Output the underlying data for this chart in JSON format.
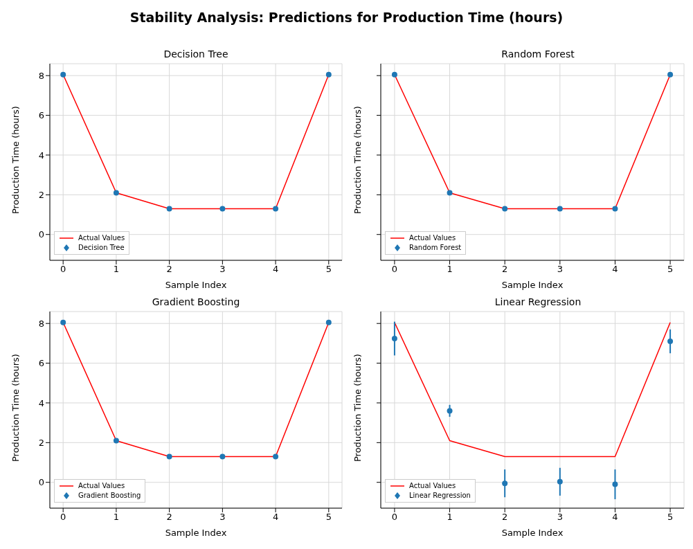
{
  "chart_data": [
    {
      "type": "scatter",
      "title": "Decision Tree",
      "annotations": [
        "Stability Analysis: Predictions for Production Time (hours)"
      ],
      "xlabel": "Sample Index",
      "ylabel": "Production Time (hours)",
      "x": [
        0,
        1,
        2,
        3,
        4,
        5
      ],
      "xlim": [
        -0.25,
        5.25
      ],
      "xticks": [
        0,
        1,
        2,
        3,
        4,
        5
      ],
      "ylim": [
        -1.3,
        8.6
      ],
      "yticks": [
        0,
        2,
        4,
        6,
        8
      ],
      "grid": true,
      "legend": "bottom left",
      "series": [
        {
          "name": "Actual Values",
          "type": "line",
          "color": "#ff0000",
          "marker": "none",
          "values": [
            8.05,
            2.1,
            1.3,
            1.3,
            1.3,
            8.05
          ]
        },
        {
          "name": "Decision Tree",
          "type": "scatter",
          "color": "#1f77b4",
          "marker": "circle",
          "values": [
            8.05,
            2.1,
            1.3,
            1.3,
            1.3,
            8.05
          ]
        }
      ]
    },
    {
      "type": "scatter",
      "title": "Random Forest",
      "xlabel": "Sample Index",
      "ylabel": "Production Time (hours)",
      "x": [
        0,
        1,
        2,
        3,
        4,
        5
      ],
      "xlim": [
        -0.25,
        5.25
      ],
      "xticks": [
        0,
        1,
        2,
        3,
        4,
        5
      ],
      "ylim": [
        -1.3,
        8.6
      ],
      "yticks": [
        0,
        2,
        4,
        6,
        8
      ],
      "tick_labels": "x",
      "grid": true,
      "legend": "bottom left",
      "series": [
        {
          "name": "Actual Values",
          "type": "line",
          "color": "#ff0000",
          "marker": "none",
          "values": [
            8.05,
            2.1,
            1.3,
            1.3,
            1.3,
            8.05
          ]
        },
        {
          "name": "Random Forest",
          "type": "scatter",
          "color": "#1f77b4",
          "marker": "circle",
          "values": [
            8.05,
            2.1,
            1.3,
            1.3,
            1.3,
            8.05
          ]
        }
      ]
    },
    {
      "type": "scatter",
      "title": "Gradient Boosting",
      "xlabel": "Sample Index",
      "ylabel": "Production Time (hours)",
      "x": [
        0,
        1,
        2,
        3,
        4,
        5
      ],
      "xlim": [
        -0.25,
        5.25
      ],
      "xticks": [
        0,
        1,
        2,
        3,
        4,
        5
      ],
      "ylim": [
        -1.3,
        8.6
      ],
      "yticks": [
        0,
        2,
        4,
        6,
        8
      ],
      "grid": true,
      "legend": "bottom left",
      "series": [
        {
          "name": "Actual Values",
          "type": "line",
          "color": "#ff0000",
          "marker": "none",
          "values": [
            8.05,
            2.1,
            1.3,
            1.3,
            1.3,
            8.05
          ]
        },
        {
          "name": "Gradient Boosting",
          "type": "scatter",
          "color": "#1f77b4",
          "marker": "circle",
          "values": [
            8.05,
            2.1,
            1.3,
            1.3,
            1.3,
            8.05
          ]
        }
      ]
    },
    {
      "type": "scatter",
      "title": "Linear Regression",
      "xlabel": "Sample Index",
      "ylabel": "Production Time (hours)",
      "x": [
        0,
        1,
        2,
        3,
        4,
        5
      ],
      "xlim": [
        -0.25,
        5.25
      ],
      "xticks": [
        0,
        1,
        2,
        3,
        4,
        5
      ],
      "ylim": [
        -1.3,
        8.6
      ],
      "yticks": [
        0,
        2,
        4,
        6,
        8
      ],
      "tick_labels": "x",
      "grid": true,
      "legend": "bottom left",
      "series": [
        {
          "name": "Actual Values",
          "type": "line",
          "color": "#ff0000",
          "marker": "none",
          "values": [
            8.05,
            2.1,
            1.3,
            1.3,
            1.3,
            8.05
          ]
        },
        {
          "name": "Linear Regression",
          "type": "scatter",
          "color": "#1f77b4",
          "marker": "circle",
          "values": [
            7.24,
            3.6,
            -0.05,
            0.03,
            -0.1,
            7.1
          ],
          "errors": [
            0.85,
            0.3,
            0.7,
            0.7,
            0.75,
            0.6
          ]
        }
      ]
    }
  ]
}
